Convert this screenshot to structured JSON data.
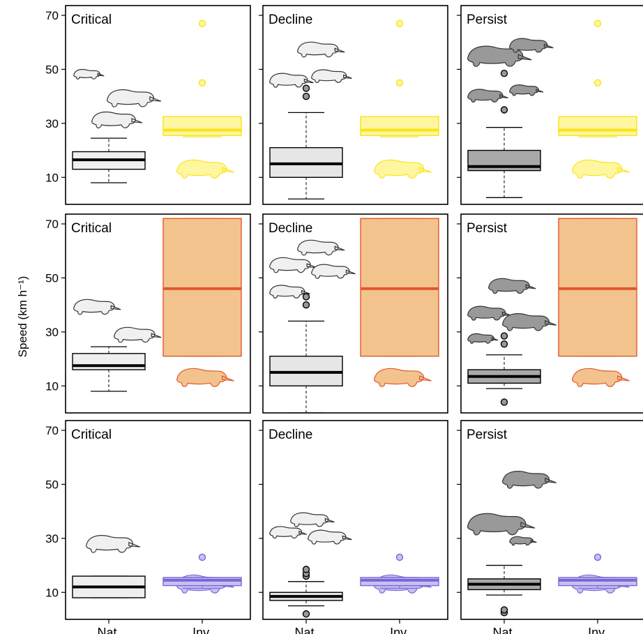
{
  "chart_data": {
    "type": "box",
    "ylabel": "Speed (km h⁻¹)",
    "ylim": [
      0,
      70
    ],
    "yticks": [
      10,
      30,
      50,
      70
    ],
    "x_categories": [
      "Nat.",
      "Inv."
    ],
    "columns": [
      "Critical",
      "Decline",
      "Persist"
    ],
    "rows": [
      {
        "predator": "cat-like (top row)",
        "inv_color": "#f7e418",
        "inv_fill": "#fff6a0",
        "inv_box": {
          "q1": 25.5,
          "median": 27.5,
          "q3": 32.5,
          "whisker_low": 25,
          "whisker_high": 32.5,
          "outliers": [
            45,
            67
          ]
        },
        "panels": [
          {
            "label": "Critical",
            "nat_fill": "#efefef",
            "nat": {
              "q1": 13,
              "median": 16.5,
              "q3": 19.5,
              "whisker_low": 8,
              "whisker_high": 24.5,
              "outliers": []
            }
          },
          {
            "label": "Decline",
            "nat_fill": "#e6e6e6",
            "nat": {
              "q1": 10,
              "median": 15,
              "q3": 21,
              "whisker_low": 2,
              "whisker_high": 34,
              "outliers": [
                40,
                43
              ]
            }
          },
          {
            "label": "Persist",
            "nat_fill": "#a9a9a9",
            "nat": {
              "q1": 12.5,
              "median": 14,
              "q3": 20,
              "whisker_low": 2.5,
              "whisker_high": 28.5,
              "outliers": [
                35,
                48.5
              ]
            }
          }
        ]
      },
      {
        "predator": "fox (middle row)",
        "inv_color": "#e2572a",
        "inv_fill": "#f3c38d",
        "inv_box": {
          "q1": 21,
          "median": 46,
          "q3": 72,
          "whisker_low": 21,
          "whisker_high": 72,
          "outliers": []
        },
        "panels": [
          {
            "label": "Critical",
            "nat_fill": "#efefef",
            "nat": {
              "q1": 16,
              "median": 17.5,
              "q3": 22,
              "whisker_low": 8,
              "whisker_high": 24.5,
              "outliers": []
            }
          },
          {
            "label": "Decline",
            "nat_fill": "#e6e6e6",
            "nat": {
              "q1": 10,
              "median": 15,
              "q3": 21,
              "whisker_low": 0,
              "whisker_high": 34,
              "outliers": [
                40,
                43
              ]
            }
          },
          {
            "label": "Persist",
            "nat_fill": "#a9a9a9",
            "nat": {
              "q1": 11,
              "median": 13.5,
              "q3": 16,
              "whisker_low": 9,
              "whisker_high": 21.5,
              "outliers": [
                4,
                25.5,
                28.5
              ]
            }
          }
        ]
      },
      {
        "predator": "cat (bottom row)",
        "inv_color": "#7a66d6",
        "inv_fill": "#c9c0f2",
        "inv_box": {
          "q1": 12.5,
          "median": 14.5,
          "q3": 15.5,
          "whisker_low": 11.5,
          "whisker_high": 15.5,
          "outliers": [
            23
          ]
        },
        "panels": [
          {
            "label": "Critical",
            "nat_fill": "#efefef",
            "nat": {
              "q1": 8,
              "median": 12,
              "q3": 16,
              "whisker_low": 8,
              "whisker_high": 16,
              "outliers": []
            }
          },
          {
            "label": "Decline",
            "nat_fill": "#e6e6e6",
            "nat": {
              "q1": 7,
              "median": 8.5,
              "q3": 10,
              "whisker_low": 5,
              "whisker_high": 14,
              "outliers": [
                2,
                16,
                17,
                18.5
              ]
            }
          },
          {
            "label": "Persist",
            "nat_fill": "#a9a9a9",
            "nat": {
              "q1": 11,
              "median": 13,
              "q3": 15,
              "whisker_low": 9,
              "whisker_high": 20,
              "outliers": [
                2.5,
                3.5
              ]
            }
          }
        ]
      }
    ],
    "grid": false,
    "legend": "none"
  }
}
